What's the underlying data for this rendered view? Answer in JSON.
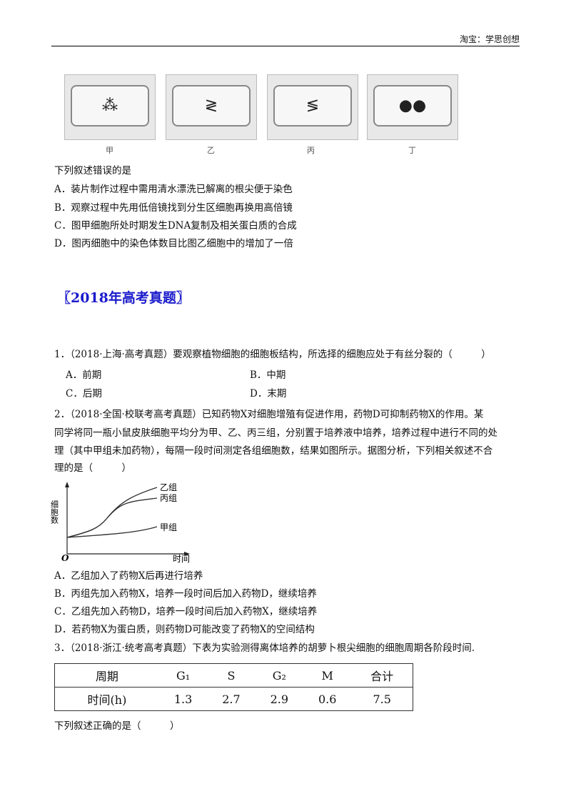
{
  "header": "淘宝：学思创想",
  "cells": [
    {
      "label": "甲",
      "glyph": "⁂"
    },
    {
      "label": "乙",
      "glyph": "≷"
    },
    {
      "label": "丙",
      "glyph": "≶"
    },
    {
      "label": "丁",
      "glyph": "●●"
    }
  ],
  "prev": {
    "stem": "下列叙述错误的是",
    "options": [
      "A．装片制作过程中需用清水漂洗已解离的根尖便于染色",
      "B．观察过程中先用低倍镜找到分生区细胞再换用高倍镜",
      "C．图甲细胞所处时期发生DNA复制及相关蛋白质的合成",
      "D．图丙细胞中的染色体数目比图乙细胞中的增加了一倍"
    ]
  },
  "section_title": "〖2018年高考真题〗",
  "q1": {
    "stem": "1．（2018·上海·高考真题）要观察植物细胞的细胞板结构，所选择的细胞应处于有丝分裂的（　　　）",
    "options": [
      "A．前期",
      "B．中期",
      "C．后期",
      "D．末期"
    ]
  },
  "q2": {
    "lines": [
      "2．（2018·全国·校联考高考真题）已知药物X对细胞增殖有促进作用，药物D可抑制药物X的作用。某",
      "同学将同一瓶小鼠皮肤细胞平均分为甲、乙、丙三组，分别置于培养液中培养，培养过程中进行不同的处",
      "理（其中甲组未加药物），每隔一段时间测定各组细胞数，结果如图所示。据图分析，下列相关叙述不合",
      "理的是（　　　）"
    ],
    "options": [
      "A．乙组加入了药物X后再进行培养",
      "B．丙组先加入药物X，培养一段时间后加入药物D，继续培养",
      "C．乙组先加入药物D，培养一段时间后加入药物X，继续培养",
      "D．若药物X为蛋白质，则药物D可能改变了药物X的空间结构"
    ]
  },
  "chart_data": {
    "type": "line",
    "xlabel": "时间",
    "ylabel": "细胞数",
    "origin": "O",
    "series": [
      {
        "name": "乙组"
      },
      {
        "name": "丙组"
      },
      {
        "name": "甲组"
      }
    ]
  },
  "q3": {
    "stem": "3．（2018·浙江·统考高考真题）下表为实验测得离体培养的胡萝卜根尖细胞的细胞周期各阶段时间.",
    "table": {
      "header": [
        "周期",
        "G₁",
        "S",
        "G₂",
        "M",
        "合计"
      ],
      "row": [
        "时间(h)",
        "1.3",
        "2.7",
        "2.9",
        "0.6",
        "7.5"
      ]
    },
    "after": "下列叙述正确的是（　　　）"
  }
}
